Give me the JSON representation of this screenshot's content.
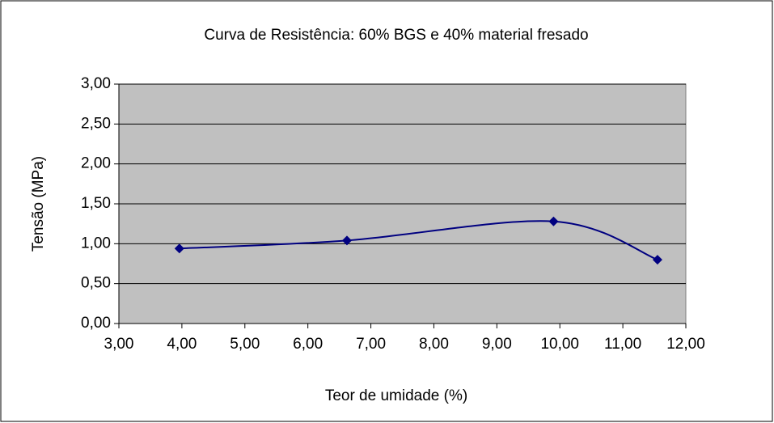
{
  "chart_data": {
    "type": "line",
    "title": "Curva de Resistência: 60% BGS e 40% material fresado",
    "xlabel": "Teor de umidade (%)",
    "ylabel": "Tensão (MPa)",
    "x": [
      3.96,
      6.62,
      9.9,
      11.55
    ],
    "series": [
      {
        "name": null,
        "color": "#000080",
        "values": [
          0.94,
          1.04,
          1.28,
          0.8
        ]
      }
    ],
    "xlim": [
      3,
      12
    ],
    "ylim": [
      0,
      3
    ],
    "xticks": [
      {
        "value": 3,
        "label": "3,00"
      },
      {
        "value": 4,
        "label": "4,00"
      },
      {
        "value": 5,
        "label": "5,00"
      },
      {
        "value": 6,
        "label": "6,00"
      },
      {
        "value": 7,
        "label": "7,00"
      },
      {
        "value": 8,
        "label": "8,00"
      },
      {
        "value": 9,
        "label": "9,00"
      },
      {
        "value": 10,
        "label": "10,00"
      },
      {
        "value": 11,
        "label": "11,00"
      },
      {
        "value": 12,
        "label": "12,00"
      }
    ],
    "yticks": [
      {
        "value": 0,
        "label": "0,00"
      },
      {
        "value": 0.5,
        "label": "0,50"
      },
      {
        "value": 1,
        "label": "1,00"
      },
      {
        "value": 1.5,
        "label": "1,50"
      },
      {
        "value": 2,
        "label": "2,00"
      },
      {
        "value": 2.5,
        "label": "2,50"
      },
      {
        "value": 3,
        "label": "3,00"
      }
    ],
    "grid": true,
    "plot_background": "#c0c0c0",
    "smooth": true
  }
}
